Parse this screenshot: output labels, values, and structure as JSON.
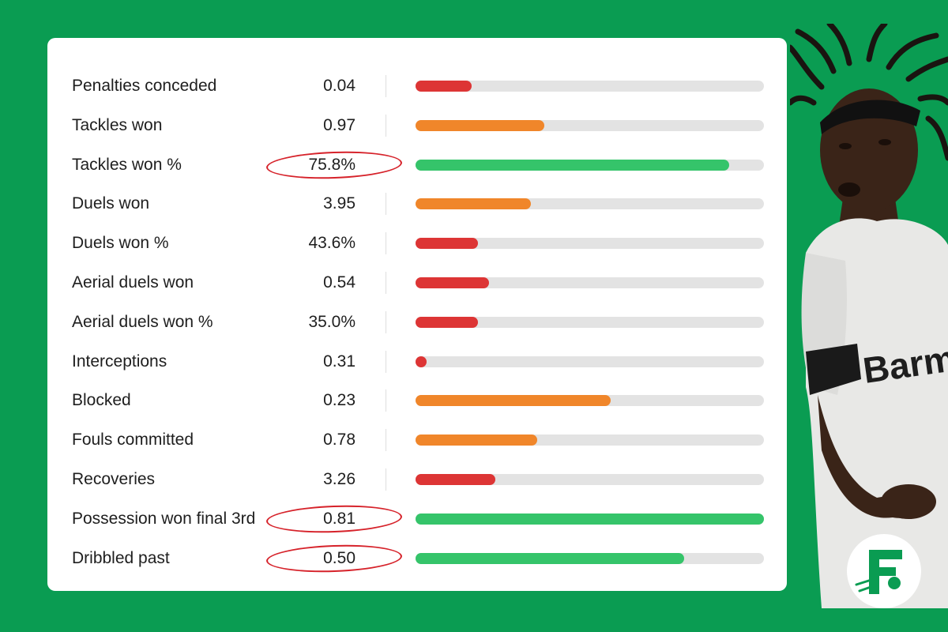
{
  "chart_data": {
    "type": "bar",
    "orientation": "horizontal",
    "rows": [
      {
        "label": "Penalties conceded",
        "value_label": "0.04",
        "percentile": 0.16,
        "color": "#dd3535",
        "circled": false
      },
      {
        "label": "Tackles won",
        "value_label": "0.97",
        "percentile": 0.37,
        "color": "#f0862a",
        "circled": false
      },
      {
        "label": "Tackles won %",
        "value_label": "75.8%",
        "percentile": 0.9,
        "color": "#35c46a",
        "circled": true
      },
      {
        "label": "Duels won",
        "value_label": "3.95",
        "percentile": 0.33,
        "color": "#f0862a",
        "circled": false
      },
      {
        "label": "Duels won %",
        "value_label": "43.6%",
        "percentile": 0.18,
        "color": "#dd3535",
        "circled": false
      },
      {
        "label": "Aerial duels won",
        "value_label": "0.54",
        "percentile": 0.21,
        "color": "#dd3535",
        "circled": false
      },
      {
        "label": "Aerial duels won %",
        "value_label": "35.0%",
        "percentile": 0.18,
        "color": "#dd3535",
        "circled": false
      },
      {
        "label": "Interceptions",
        "value_label": "0.31",
        "percentile": 0.03,
        "color": "#dd3535",
        "circled": false
      },
      {
        "label": "Blocked",
        "value_label": "0.23",
        "percentile": 0.56,
        "color": "#f0862a",
        "circled": false
      },
      {
        "label": "Fouls committed",
        "value_label": "0.78",
        "percentile": 0.35,
        "color": "#f0862a",
        "circled": false
      },
      {
        "label": "Recoveries",
        "value_label": "3.26",
        "percentile": 0.23,
        "color": "#dd3535",
        "circled": false
      },
      {
        "label": "Possession won final 3rd",
        "value_label": "0.81",
        "percentile": 1.0,
        "color": "#35c46a",
        "circled": true
      },
      {
        "label": "Dribbled past",
        "value_label": "0.50",
        "percentile": 0.77,
        "color": "#35c46a",
        "circled": true
      }
    ],
    "xlim": [
      0,
      1
    ],
    "grid": false
  },
  "colors": {
    "background": "#0a9c52",
    "card": "#ffffff",
    "track": "#e3e3e3",
    "low": "#dd3535",
    "mid": "#f0862a",
    "high": "#35c46a",
    "circle": "#d6222a"
  },
  "decorations": {
    "player_image": "footballer-photo",
    "logo_icon": "brand-f-logo-icon",
    "shirt_text": "Barm"
  }
}
